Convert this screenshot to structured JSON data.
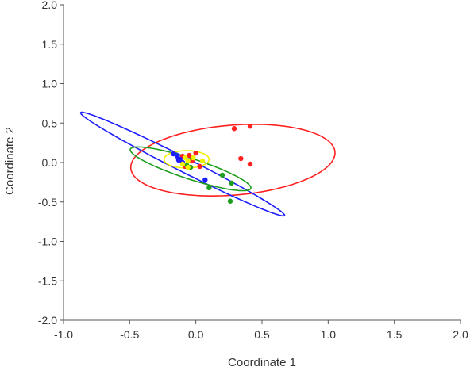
{
  "chart_data": {
    "type": "scatter",
    "title": "",
    "xlabel": "Coordinate 1",
    "ylabel": "Coordinate 2",
    "xlim": [
      -1.0,
      2.0
    ],
    "ylim": [
      -2.0,
      2.0
    ],
    "x_ticks": [
      "-1.0",
      "-0.5",
      "0.0",
      "0.5",
      "1.0",
      "1.5",
      "2.0"
    ],
    "y_ticks": [
      "2.0",
      "1.5",
      "1.0",
      "0.5",
      "0.0",
      "-0.5",
      "-1.0",
      "-1.5",
      "-2.0"
    ],
    "grid": false,
    "legend": "none",
    "series": [
      {
        "color": "#ff2020",
        "points": [
          [
            0.29,
            0.43
          ],
          [
            0.41,
            0.46
          ],
          [
            0.34,
            0.05
          ],
          [
            0.41,
            -0.02
          ],
          [
            0.0,
            0.12
          ],
          [
            -0.05,
            0.09
          ],
          [
            -0.1,
            0.08
          ],
          [
            -0.08,
            -0.05
          ],
          [
            0.03,
            -0.05
          ],
          [
            -0.03,
            0.02
          ]
        ],
        "ellipse": {
          "cx": 0.28,
          "cy": 0.03,
          "rx": 0.78,
          "ry": 0.44,
          "angle_deg": 10
        }
      },
      {
        "color": "#1c1cff",
        "points": [
          [
            -0.17,
            0.11
          ],
          [
            -0.12,
            0.04
          ],
          [
            -0.14,
            0.08
          ],
          [
            -0.1,
            0.0
          ],
          [
            -0.13,
            0.03
          ],
          [
            0.07,
            -0.22
          ]
        ],
        "ellipse": {
          "cx": -0.1,
          "cy": -0.02,
          "rx": 1.01,
          "ry": 0.077,
          "angle_deg": -40.4
        }
      },
      {
        "color": "#1d9e1d",
        "points": [
          [
            0.2,
            -0.16
          ],
          [
            0.27,
            -0.26
          ],
          [
            0.1,
            -0.32
          ],
          [
            0.26,
            -0.49
          ],
          [
            -0.04,
            -0.06
          ],
          [
            -0.07,
            -0.03
          ]
        ],
        "ellipse": {
          "cx": -0.04,
          "cy": -0.08,
          "rx": 0.52,
          "ry": 0.12,
          "angle_deg": -29.6
        }
      },
      {
        "color": "#f0f000",
        "points": [
          [
            -0.08,
            0.06
          ],
          [
            -0.06,
            0.02
          ],
          [
            -0.1,
            -0.02
          ],
          [
            -0.02,
            0.06
          ],
          [
            -0.06,
            -0.06
          ],
          [
            0.05,
            0.02
          ]
        ],
        "ellipse": {
          "cx": -0.07,
          "cy": 0.04,
          "rx": 0.17,
          "ry": 0.11,
          "angle_deg": 0
        }
      }
    ]
  }
}
